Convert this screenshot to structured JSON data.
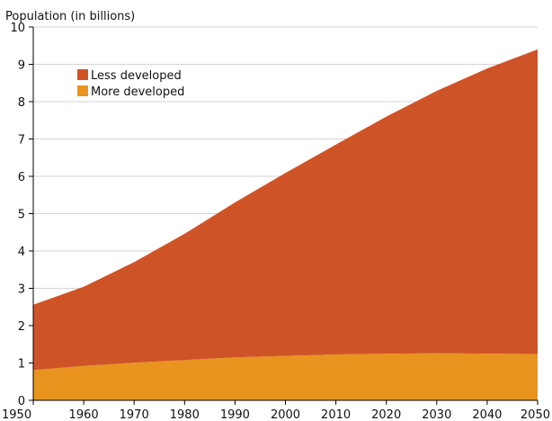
{
  "chart_data": {
    "type": "area",
    "stacked": true,
    "ylabel": "Population (in billions)",
    "xlabel": "",
    "x": [
      1950,
      1960,
      1970,
      1980,
      1990,
      2000,
      2010,
      2020,
      2030,
      2040,
      2050
    ],
    "xlim": [
      1950,
      2050
    ],
    "ylim": [
      0,
      10
    ],
    "x_ticks": [
      "1950",
      "1960",
      "1970",
      "1980",
      "1990",
      "2000",
      "2010",
      "2020",
      "2030",
      "2040",
      "2050"
    ],
    "y_ticks": [
      "0",
      "1",
      "2",
      "3",
      "4",
      "5",
      "6",
      "7",
      "8",
      "9",
      "10"
    ],
    "grid": "horizontal",
    "legend_position": "top-left",
    "series": [
      {
        "name": "More developed",
        "color": "#E8941F",
        "values": [
          0.81,
          0.92,
          1.01,
          1.08,
          1.15,
          1.19,
          1.23,
          1.25,
          1.26,
          1.25,
          1.24
        ]
      },
      {
        "name": "Less developed",
        "color": "#CE5428",
        "values": [
          1.75,
          2.12,
          2.69,
          3.38,
          4.15,
          4.9,
          5.62,
          6.35,
          7.03,
          7.64,
          8.16
        ]
      }
    ],
    "legend_order": [
      1,
      0
    ]
  }
}
